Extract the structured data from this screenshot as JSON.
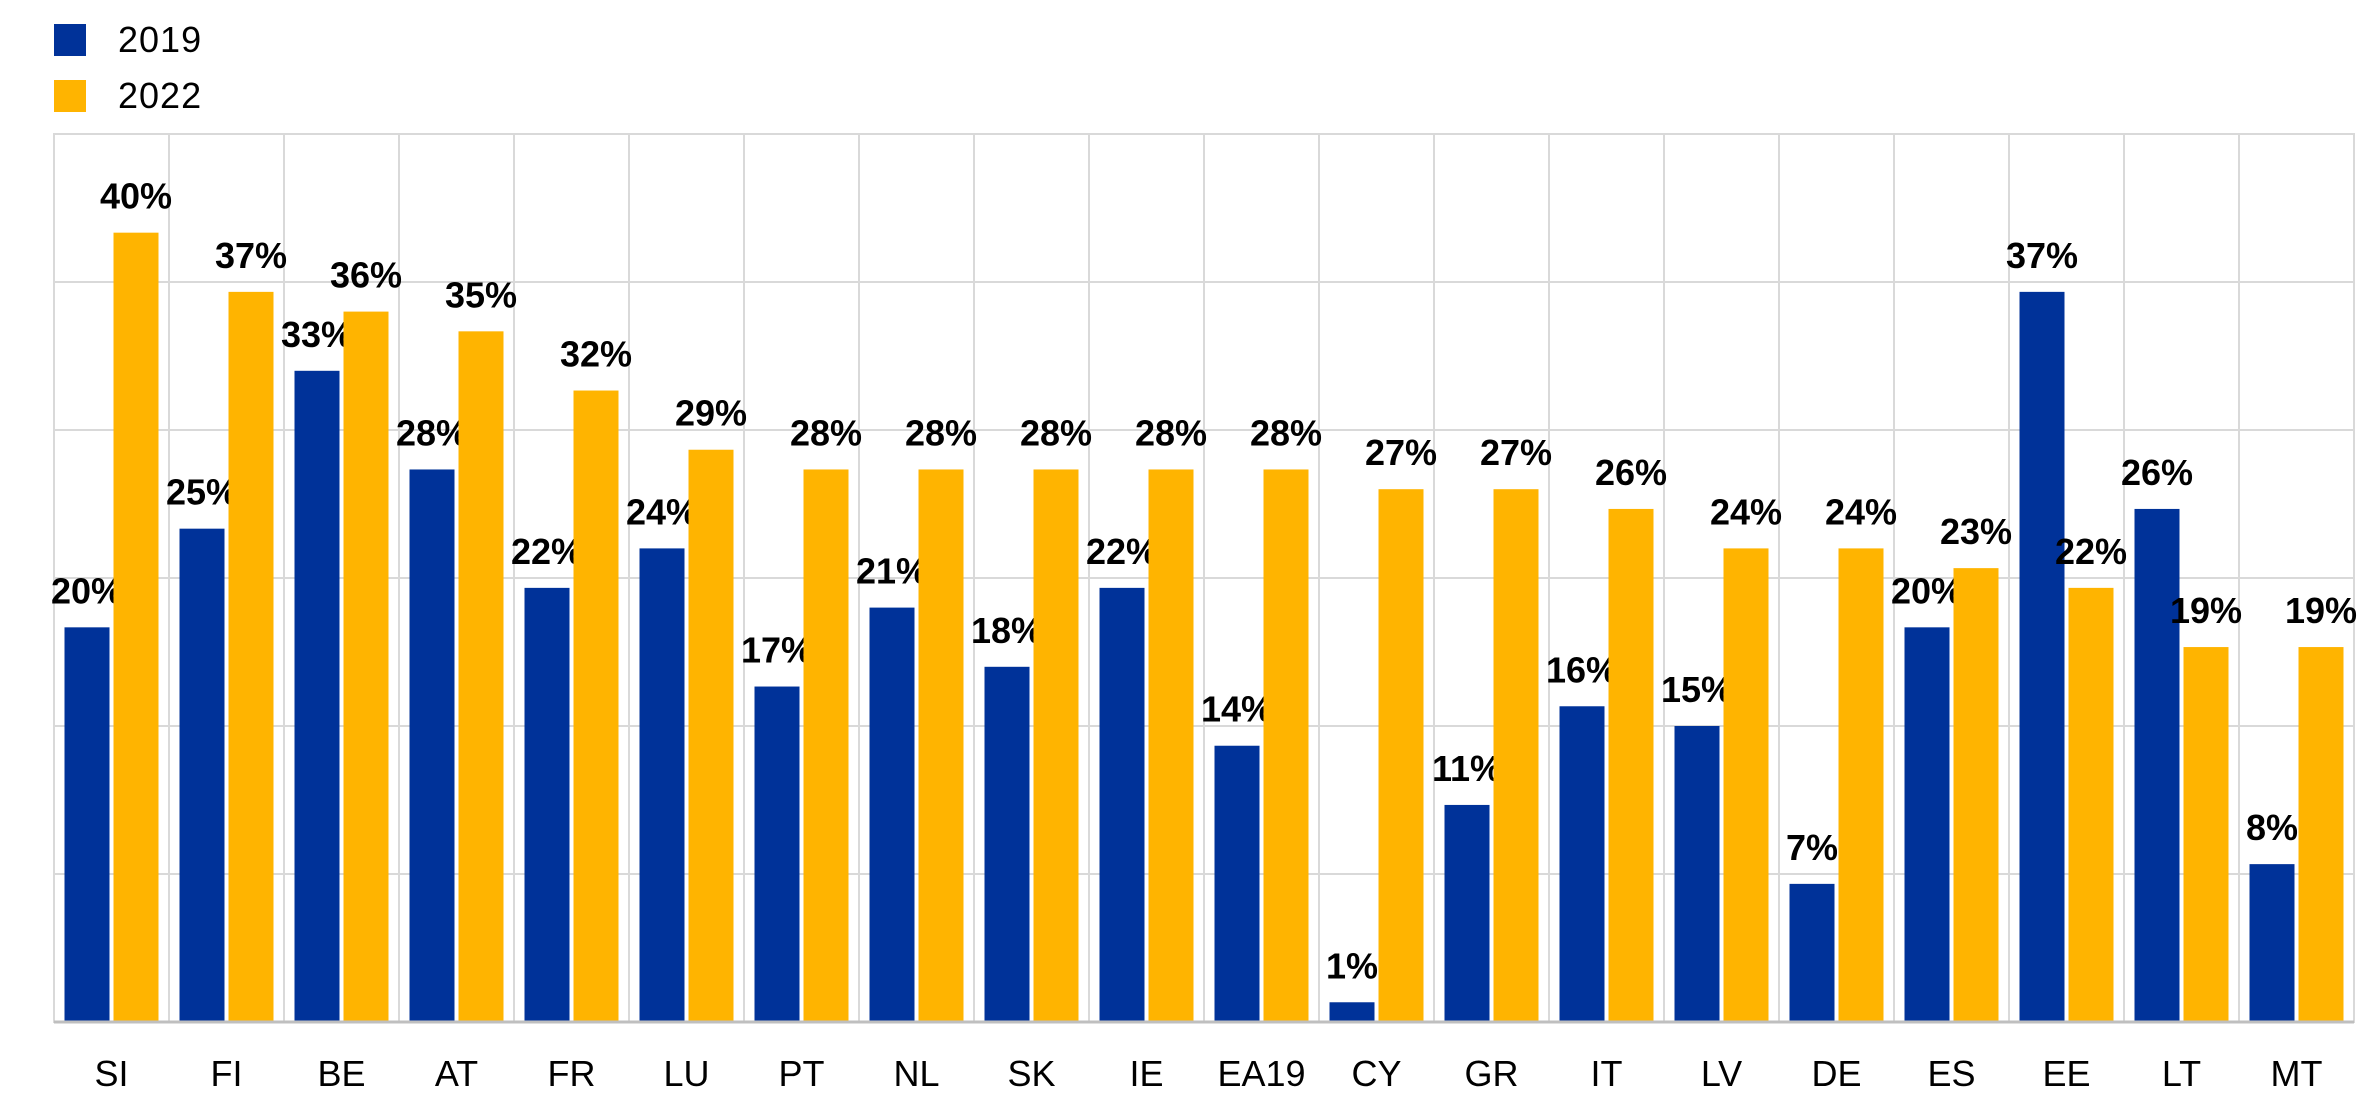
{
  "legend": [
    {
      "label": "2019",
      "color": "#003299"
    },
    {
      "label": "2022",
      "color": "#FFB400"
    }
  ],
  "chart_data": {
    "type": "bar",
    "title": "",
    "xlabel": "",
    "ylabel": "",
    "ylim": [
      0,
      45
    ],
    "grid": true,
    "legend_position": "top-left",
    "categories": [
      "SI",
      "FI",
      "BE",
      "AT",
      "FR",
      "LU",
      "PT",
      "NL",
      "SK",
      "IE",
      "EA19",
      "CY",
      "GR",
      "IT",
      "LV",
      "DE",
      "ES",
      "EE",
      "LT",
      "MT"
    ],
    "series": [
      {
        "name": "2019",
        "color": "#003299",
        "values": [
          20,
          25,
          33,
          28,
          22,
          24,
          17,
          21,
          18,
          22,
          14,
          1,
          11,
          16,
          15,
          7,
          20,
          37,
          26,
          8
        ],
        "labels": [
          "20%",
          "25%",
          "33%",
          "28%",
          "22%",
          "24%",
          "17%",
          "21%",
          "18%",
          "22%",
          "14%",
          "1%",
          "11%",
          "16%",
          "15%",
          "7%",
          "20%",
          "37%",
          "26%",
          "8%"
        ]
      },
      {
        "name": "2022",
        "color": "#FFB400",
        "values": [
          40,
          37,
          36,
          35,
          32,
          29,
          28,
          28,
          28,
          28,
          28,
          27,
          27,
          26,
          24,
          24,
          23,
          22,
          19,
          19
        ],
        "labels": [
          "40%",
          "37%",
          "36%",
          "35%",
          "32%",
          "29%",
          "28%",
          "28%",
          "28%",
          "28%",
          "28%",
          "27%",
          "27%",
          "26%",
          "24%",
          "24%",
          "23%",
          "22%",
          "19%",
          "19%"
        ]
      }
    ]
  }
}
